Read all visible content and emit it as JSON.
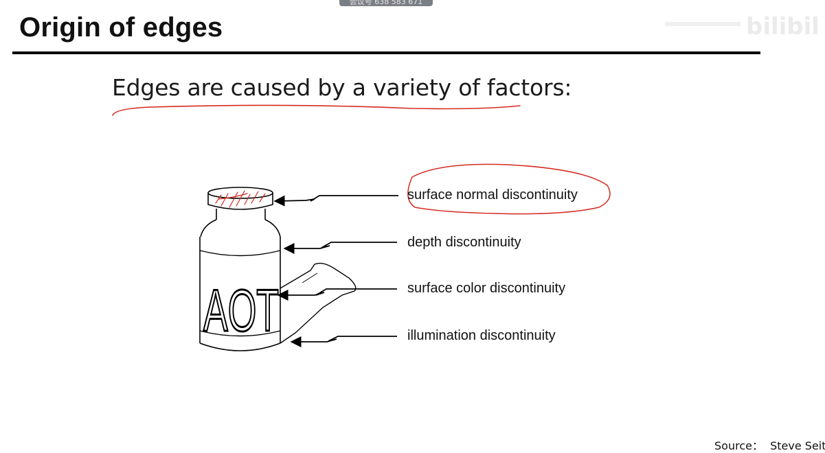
{
  "overlay": {
    "meeting_id": "会议号 638 583 671",
    "watermark": "bilibili"
  },
  "slide": {
    "title": "Origin of edges",
    "subtitle": "Edges are caused by a variety of factors:",
    "figure": {
      "bottle_text": "AOT",
      "labels": [
        "surface normal discontinuity",
        "depth discontinuity",
        "surface color discontinuity",
        "illumination discontinuity"
      ]
    },
    "source": "Source：  Steve Seitz"
  },
  "colors": {
    "annotation": "#d42a1f",
    "title_rule": "#000000"
  },
  "icons": [
    "bilibili-logo"
  ]
}
